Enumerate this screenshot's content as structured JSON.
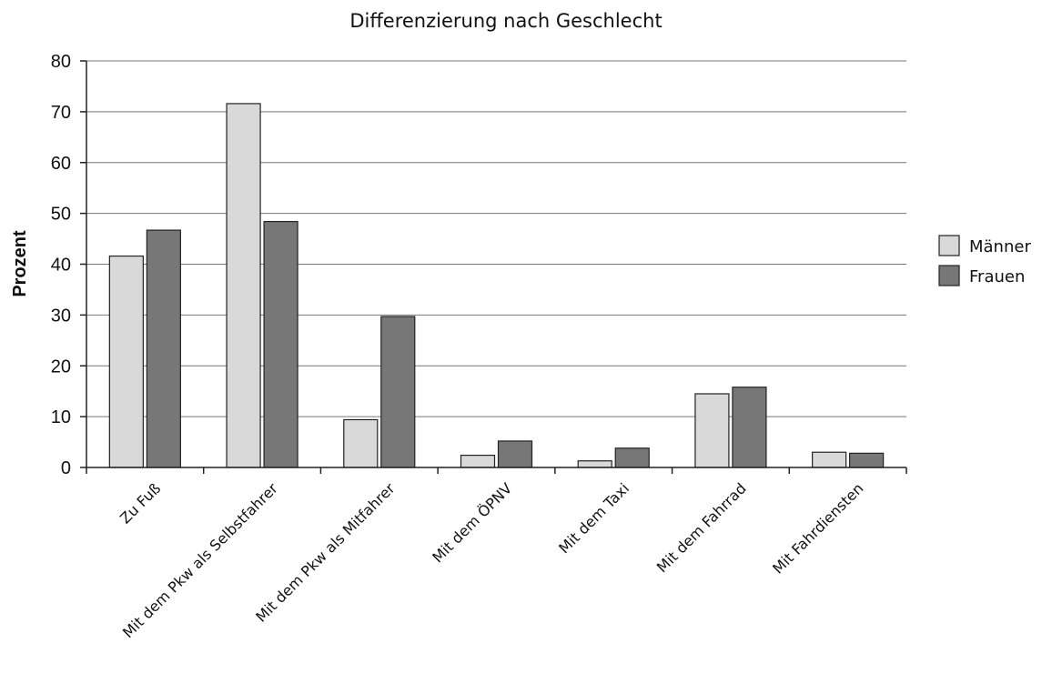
{
  "chart_data": {
    "type": "bar",
    "title": "Differenzierung nach Geschlecht",
    "xlabel": "",
    "ylabel": "Prozent",
    "ylim": [
      0,
      80
    ],
    "yticks": [
      0,
      10,
      20,
      30,
      40,
      50,
      60,
      70,
      80
    ],
    "grid": true,
    "legend_position": "right",
    "categories": [
      "Zu Fuß",
      "Mit dem Pkw als Selbstfahrer",
      "Mit dem Pkw als Mitfahrer",
      "Mit dem ÖPNV",
      "Mit dem Taxi",
      "Mit dem Fahrrad",
      "Mit Fahrdiensten"
    ],
    "series": [
      {
        "name": "Männer",
        "color": "#d9d9d9",
        "values": [
          41.6,
          71.6,
          9.4,
          2.4,
          1.3,
          14.5,
          3.0
        ]
      },
      {
        "name": "Frauen",
        "color": "#777777",
        "values": [
          46.7,
          48.4,
          29.7,
          5.2,
          3.8,
          15.8,
          2.8
        ]
      }
    ]
  }
}
